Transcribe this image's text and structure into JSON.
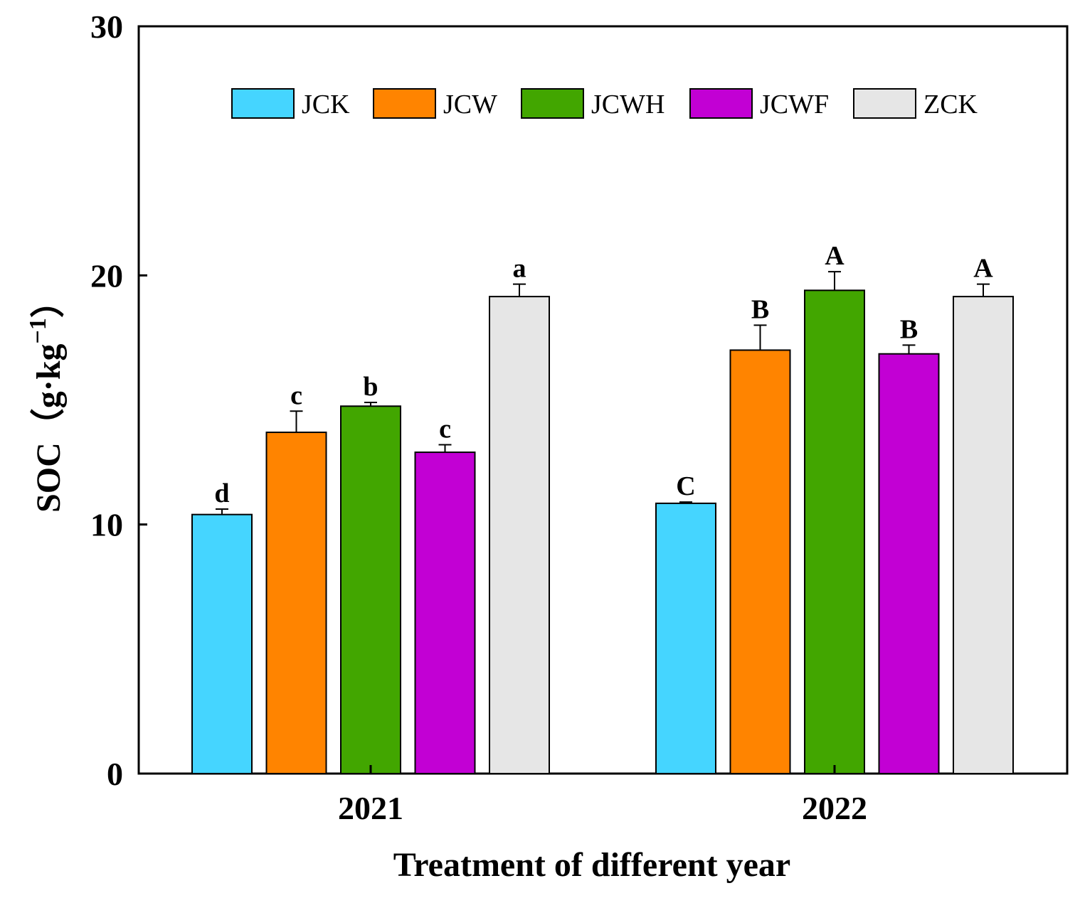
{
  "chart_data": {
    "type": "bar",
    "title": "",
    "xlabel": "Treatment  of different year",
    "ylabel": "SOC（g·kg",
    "ylabel_superscript": "−1",
    "ylabel_close": "）",
    "ylim": [
      0,
      30
    ],
    "yticks": [
      0,
      10,
      20,
      30
    ],
    "categories": [
      "2021",
      "2022"
    ],
    "legend_position": "top-center",
    "series": [
      {
        "name": "JCK",
        "color": "#45d5ff",
        "values": [
          10.4,
          10.85
        ],
        "errors": [
          0.22,
          0.05
        ],
        "labels": [
          "d",
          "C"
        ]
      },
      {
        "name": "JCW",
        "color": "#ff8400",
        "values": [
          13.7,
          17.0
        ],
        "errors": [
          0.85,
          1.0
        ],
        "labels": [
          "c",
          "B"
        ]
      },
      {
        "name": "JCWH",
        "color": "#42a600",
        "values": [
          14.75,
          19.4
        ],
        "errors": [
          0.15,
          0.75
        ],
        "labels": [
          "b",
          "A"
        ]
      },
      {
        "name": "JCWF",
        "color": "#c200d4",
        "values": [
          12.9,
          16.85
        ],
        "errors": [
          0.3,
          0.35
        ],
        "labels": [
          "c",
          "B"
        ]
      },
      {
        "name": "ZCK",
        "color": "#e6e6e6",
        "values": [
          19.15,
          19.15
        ],
        "errors": [
          0.5,
          0.5
        ],
        "labels": [
          "a",
          "A"
        ]
      }
    ]
  }
}
